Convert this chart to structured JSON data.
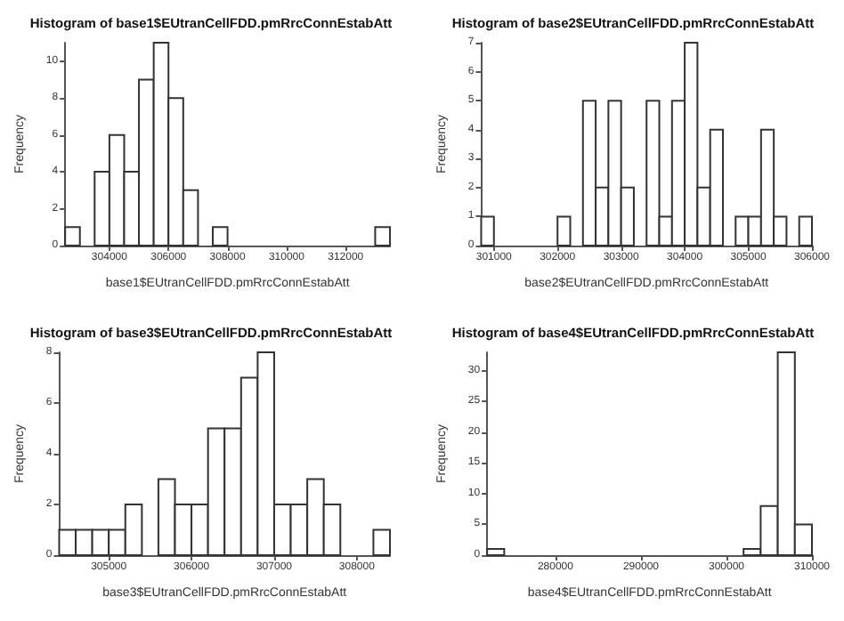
{
  "chart_data": [
    {
      "type": "histogram",
      "title": "Histogram of base1$EUtranCellFDD.pmRrcConnEstabAtt",
      "xlabel": "base1$EUtranCellFDD.pmRrcConnEstabAtt",
      "ylabel": "Frequency",
      "bins": [
        302500,
        303000,
        303500,
        304000,
        304500,
        305000,
        305500,
        306000,
        306500,
        307000,
        307500,
        308000,
        308500,
        309000,
        309500,
        310000,
        310500,
        311000,
        311500,
        312000,
        312500,
        313000,
        313500
      ],
      "values": [
        1,
        0,
        4,
        6,
        4,
        9,
        11,
        8,
        3,
        0,
        1,
        0,
        0,
        0,
        0,
        0,
        0,
        0,
        0,
        0,
        0,
        1
      ],
      "color": "#ffffff",
      "xlim": [
        302500,
        313500
      ],
      "xticks": [
        304000,
        306000,
        308000,
        310000,
        312000
      ],
      "ylim": [
        0,
        11
      ],
      "yticks": [
        0,
        2,
        4,
        6,
        8,
        10
      ],
      "grid": false
    },
    {
      "type": "histogram",
      "title": "Histogram of base2$EUtranCellFDD.pmRrcConnEstabAtt",
      "xlabel": "base2$EUtranCellFDD.pmRrcConnEstabAtt",
      "ylabel": "Frequency",
      "bins": [
        300800,
        301000,
        301200,
        301400,
        301600,
        301800,
        302000,
        302200,
        302400,
        302600,
        302800,
        303000,
        303200,
        303400,
        303600,
        303800,
        304000,
        304200,
        304400,
        304600,
        304800,
        305000,
        305200,
        305400,
        305600,
        305800,
        306000
      ],
      "values": [
        1,
        0,
        0,
        0,
        0,
        0,
        1,
        0,
        5,
        2,
        5,
        2,
        0,
        5,
        1,
        5,
        7,
        2,
        4,
        0,
        1,
        1,
        4,
        1,
        0,
        1
      ],
      "color": "#ffffff",
      "xlim": [
        300800,
        306000
      ],
      "xticks": [
        301000,
        302000,
        303000,
        304000,
        305000,
        306000
      ],
      "ylim": [
        0,
        7
      ],
      "yticks": [
        0,
        1,
        2,
        3,
        4,
        5,
        6,
        7
      ],
      "grid": false
    },
    {
      "type": "histogram",
      "title": "Histogram of base3$EUtranCellFDD.pmRrcConnEstabAtt",
      "xlabel": "base3$EUtranCellFDD.pmRrcConnEstabAtt",
      "ylabel": "Frequency",
      "bins": [
        304400,
        304600,
        304800,
        305000,
        305200,
        305400,
        305600,
        305800,
        306000,
        306200,
        306400,
        306600,
        306800,
        307000,
        307200,
        307400,
        307600,
        307800,
        308000,
        308200,
        308400
      ],
      "values": [
        1,
        1,
        1,
        1,
        2,
        0,
        3,
        2,
        2,
        5,
        5,
        7,
        8,
        2,
        2,
        3,
        2,
        0,
        0,
        1
      ],
      "color": "#ffffff",
      "xlim": [
        304400,
        308400
      ],
      "xticks": [
        305000,
        306000,
        307000,
        308000
      ],
      "ylim": [
        0,
        8
      ],
      "yticks": [
        0,
        2,
        4,
        6,
        8
      ],
      "grid": false
    },
    {
      "type": "histogram",
      "title": "Histogram of base4$EUtranCellFDD.pmRrcConnEstabAtt",
      "xlabel": "base4$EUtranCellFDD.pmRrcConnEstabAtt",
      "ylabel": "Frequency",
      "bins": [
        272000,
        274000,
        276000,
        278000,
        280000,
        282000,
        284000,
        286000,
        288000,
        290000,
        292000,
        294000,
        296000,
        298000,
        300000,
        302000,
        304000,
        306000,
        308000,
        310000
      ],
      "values": [
        1,
        0,
        0,
        0,
        0,
        0,
        0,
        0,
        0,
        0,
        0,
        0,
        0,
        0,
        0,
        1,
        8,
        33,
        5
      ],
      "color": "#ffffff",
      "xlim": [
        272000,
        310000
      ],
      "xticks": [
        280000,
        290000,
        300000,
        310000
      ],
      "ylim": [
        0,
        33
      ],
      "yticks": [
        0,
        5,
        10,
        15,
        20,
        25,
        30
      ],
      "grid": false
    }
  ]
}
